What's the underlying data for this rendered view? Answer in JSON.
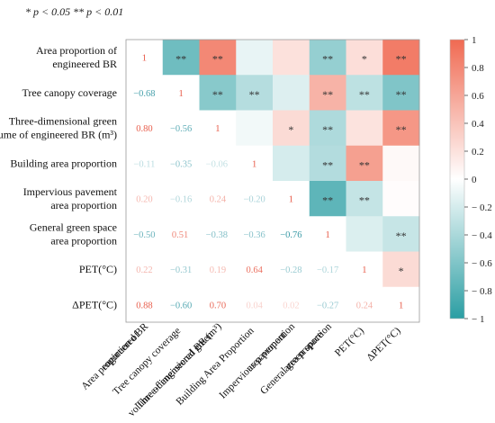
{
  "chart_data": {
    "type": "heatmap",
    "note": "* p < 0.05     ** p < 0.01",
    "row_labels": [
      [
        "Area proportion of",
        "engineered BR"
      ],
      [
        "Tree canopy coverage"
      ],
      [
        "Three-dimensional green",
        "volume of engineered BR (m³)"
      ],
      [
        "Building area proportion"
      ],
      [
        "Impervious pavement",
        "area proportion"
      ],
      [
        "General green space",
        "area proportion"
      ],
      [
        "PET(°C)"
      ],
      [
        "ΔPET(°C)"
      ]
    ],
    "col_labels": [
      [
        "Area proportion of",
        "engineered BR"
      ],
      [
        "Tree canopy coverage"
      ],
      [
        "Three-dimensional green",
        "volume of engineered BR (m³)"
      ],
      [
        "Building Area Proportion"
      ],
      [
        "Impervious pavement",
        "area proportion"
      ],
      [
        "General green space",
        "area proportion"
      ],
      [
        "PET(°C)"
      ],
      [
        "ΔPET(°C)"
      ]
    ],
    "correlations": [
      [
        1.0,
        -0.68,
        0.8,
        -0.11,
        0.2,
        -0.5,
        0.22,
        0.88
      ],
      [
        -0.68,
        1.0,
        -0.56,
        -0.35,
        -0.16,
        0.51,
        -0.31,
        -0.6
      ],
      [
        0.8,
        -0.56,
        1.0,
        -0.06,
        0.24,
        -0.38,
        0.19,
        0.7
      ],
      [
        -0.11,
        -0.35,
        -0.06,
        1.0,
        -0.2,
        -0.36,
        0.64,
        0.04
      ],
      [
        0.2,
        -0.16,
        0.24,
        -0.2,
        1.0,
        -0.76,
        -0.28,
        0.02
      ],
      [
        -0.5,
        0.51,
        -0.38,
        -0.36,
        -0.76,
        1.0,
        -0.17,
        -0.27
      ],
      [
        0.22,
        -0.31,
        0.19,
        0.64,
        -0.28,
        -0.17,
        1.0,
        0.24
      ],
      [
        0.88,
        -0.6,
        0.7,
        0.04,
        0.02,
        -0.27,
        0.24,
        1.0
      ]
    ],
    "lower_labels": [
      [],
      [
        "−0.68"
      ],
      [
        "0.80",
        "−0.56"
      ],
      [
        "−0.11",
        "−0.35",
        "−0.06 "
      ],
      [
        "0.20",
        "−0.16",
        "0.24",
        "−0.20"
      ],
      [
        "−0.50",
        "0.51 ",
        "−0.38 ",
        "−0.36",
        "−0.76"
      ],
      [
        "0.22",
        "−0.31",
        "0.19",
        "0.64",
        "−0.28",
        "−0.17"
      ],
      [
        "0.88",
        "−0.60",
        "0.70",
        "0.04",
        "0.02",
        "−0.27",
        "0.24"
      ]
    ],
    "significance": [
      [
        "",
        "**",
        "**",
        "",
        "",
        "**",
        "*",
        "**"
      ],
      [
        "",
        "",
        "**",
        "**",
        "",
        "**",
        "**",
        "**"
      ],
      [
        "",
        "",
        "",
        "",
        "*",
        "**",
        "",
        "**"
      ],
      [
        "",
        "",
        "",
        "",
        "",
        "**",
        "**",
        ""
      ],
      [
        "",
        "",
        "",
        "",
        "",
        "**",
        "**",
        ""
      ],
      [
        "",
        "",
        "",
        "",
        "",
        "",
        "",
        "**"
      ],
      [
        "",
        "",
        "",
        "",
        "",
        "",
        "",
        "*"
      ],
      [
        "",
        "",
        "",
        "",
        "",
        "",
        "",
        ""
      ]
    ],
    "diagonal_label": "1",
    "colorbar": {
      "ticks": [
        "1",
        "0.8",
        "0.6",
        "0.4",
        "0.2",
        "0",
        "− 0.2",
        "− 0.4",
        "− 0.6",
        "− 0.8",
        "− 1"
      ],
      "tick_values": [
        1,
        0.8,
        0.6,
        0.4,
        0.2,
        0,
        -0.2,
        -0.4,
        -0.6,
        -0.8,
        -1
      ],
      "range": [
        -1,
        1
      ]
    },
    "colors": {
      "positive": "#f06a52",
      "neutral": "#ffffff",
      "negative": "#2b9ea3",
      "text_positive": "#e8604e",
      "text_negative": "#3a9aa6",
      "star": "#333333"
    }
  }
}
